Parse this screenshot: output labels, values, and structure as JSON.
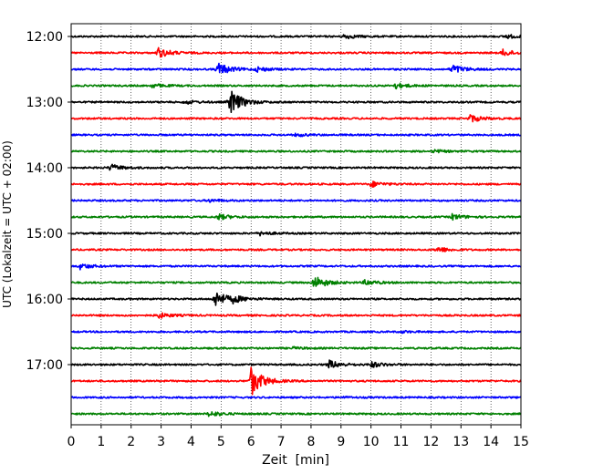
{
  "chart_data": {
    "type": "line",
    "title": "",
    "xlabel": "Zeit  [min]",
    "ylabel": "UTC (Lokalzeit = UTC + 02:00)",
    "xlim": [
      0,
      15
    ],
    "xticks": [
      "0",
      "1",
      "2",
      "3",
      "4",
      "5",
      "6",
      "7",
      "8",
      "9",
      "10",
      "11",
      "12",
      "13",
      "14",
      "15"
    ],
    "y_tick_labels": [
      "12:00",
      "13:00",
      "14:00",
      "15:00",
      "16:00",
      "17:00"
    ],
    "trace_interval_min": 15,
    "trace_colors": [
      "#000000",
      "#ff0000",
      "#0000ff",
      "#008000"
    ],
    "grid_x": "dotted",
    "traces": [
      {
        "start": "12:00",
        "events": [
          {
            "t": 9.1,
            "amp": 0.25
          },
          {
            "t": 14.5,
            "amp": 0.2
          }
        ]
      },
      {
        "start": "12:15",
        "events": [
          {
            "t": 2.9,
            "amp": 0.55
          },
          {
            "t": 14.4,
            "amp": 0.35
          }
        ]
      },
      {
        "start": "12:30",
        "events": [
          {
            "t": 4.9,
            "amp": 0.7
          },
          {
            "t": 12.7,
            "amp": 0.5
          },
          {
            "t": 6.2,
            "amp": 0.25
          }
        ]
      },
      {
        "start": "12:45",
        "events": [
          {
            "t": 10.8,
            "amp": 0.3
          },
          {
            "t": 2.7,
            "amp": 0.2
          }
        ]
      },
      {
        "start": "13:00",
        "events": [
          {
            "t": 5.3,
            "amp": 1.4
          },
          {
            "t": 3.8,
            "amp": 0.2
          }
        ]
      },
      {
        "start": "13:15",
        "events": [
          {
            "t": 13.3,
            "amp": 0.4
          }
        ]
      },
      {
        "start": "13:30",
        "events": [
          {
            "t": 7.5,
            "amp": 0.15
          }
        ]
      },
      {
        "start": "13:45",
        "events": [
          {
            "t": 12.1,
            "amp": 0.15
          }
        ]
      },
      {
        "start": "14:00",
        "events": [
          {
            "t": 1.3,
            "amp": 0.35
          }
        ]
      },
      {
        "start": "14:15",
        "events": [
          {
            "t": 10.0,
            "amp": 0.3
          }
        ]
      },
      {
        "start": "14:30",
        "events": [
          {
            "t": 4.6,
            "amp": 0.15
          }
        ]
      },
      {
        "start": "14:45",
        "events": [
          {
            "t": 4.9,
            "amp": 0.3
          },
          {
            "t": 12.7,
            "amp": 0.3
          }
        ]
      },
      {
        "start": "15:00",
        "events": [
          {
            "t": 6.3,
            "amp": 0.2
          }
        ]
      },
      {
        "start": "15:15",
        "events": [
          {
            "t": 12.2,
            "amp": 0.3
          }
        ]
      },
      {
        "start": "15:30",
        "events": [
          {
            "t": 0.3,
            "amp": 0.3
          }
        ]
      },
      {
        "start": "15:45",
        "events": [
          {
            "t": 8.1,
            "amp": 0.75
          },
          {
            "t": 9.8,
            "amp": 0.3
          }
        ]
      },
      {
        "start": "16:00",
        "events": [
          {
            "t": 4.8,
            "amp": 0.9
          },
          {
            "t": 5.4,
            "amp": 0.3
          }
        ]
      },
      {
        "start": "16:15",
        "events": [
          {
            "t": 2.9,
            "amp": 0.3
          }
        ]
      },
      {
        "start": "16:30",
        "events": [
          {
            "t": 11.0,
            "amp": 0.1
          }
        ]
      },
      {
        "start": "16:45",
        "events": [
          {
            "t": 7.4,
            "amp": 0.1
          }
        ]
      },
      {
        "start": "17:00",
        "events": [
          {
            "t": 8.6,
            "amp": 0.45
          },
          {
            "t": 10.0,
            "amp": 0.3
          }
        ]
      },
      {
        "start": "17:15",
        "events": [
          {
            "t": 6.0,
            "amp": 1.6
          }
        ]
      },
      {
        "start": "17:30",
        "events": [
          {
            "t": 9.0,
            "amp": 0.08
          }
        ]
      },
      {
        "start": "17:45",
        "events": [
          {
            "t": 4.6,
            "amp": 0.3
          }
        ]
      }
    ]
  }
}
